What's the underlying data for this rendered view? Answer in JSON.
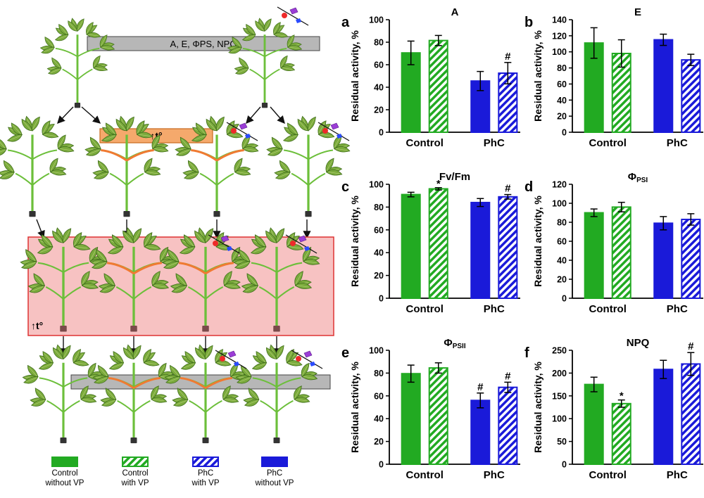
{
  "diagram": {
    "measure_label": "A, E, ΦPS, NPQ",
    "heat_label": "↑t°",
    "legend": [
      {
        "line1": "Control",
        "line2": "without VP",
        "fill": "solid",
        "color": "#22aa22"
      },
      {
        "line1": "Control",
        "line2": "with VP",
        "fill": "hatch",
        "color": "#22aa22"
      },
      {
        "line1": "PhC",
        "line2": "with VP",
        "fill": "hatch",
        "color": "#1a1ad9"
      },
      {
        "line1": "PhC",
        "line2": "without VP",
        "fill": "solid",
        "color": "#1a1ad9"
      }
    ]
  },
  "colors": {
    "control": "#22aa22",
    "phc": "#1a1ad9",
    "heat_box": "#f7c2c2",
    "heat_border": "#d33",
    "burn_bar": "#f5a96c",
    "stem": "#6cbf3a",
    "leaf": "#7aaa3c",
    "burn": "#f07a32"
  },
  "chart_data": [
    {
      "letter": "a",
      "title": "A",
      "title_sub": "",
      "type": "bar",
      "ylabel": "Residual activity, %",
      "ylim": [
        0,
        100
      ],
      "yticks": [
        0,
        20,
        40,
        60,
        80,
        100
      ],
      "categories": [
        "Control",
        "PhC"
      ],
      "series": [
        {
          "name": "Control without VP",
          "values": [
            70.5,
            null
          ],
          "err": [
            10.5,
            null
          ]
        },
        {
          "name": "Control with VP",
          "values": [
            81.5,
            null
          ],
          "err": [
            4.5,
            null
          ]
        },
        {
          "name": "PhC without VP",
          "values": [
            null,
            45.5
          ],
          "err": [
            null,
            8.5
          ]
        },
        {
          "name": "PhC with VP",
          "values": [
            null,
            52.5
          ],
          "err": [
            null,
            9.5
          ]
        }
      ],
      "marks": [
        "",
        "",
        "",
        "#"
      ]
    },
    {
      "letter": "b",
      "title": "E",
      "title_sub": "",
      "type": "bar",
      "ylabel": "Residual activity, %",
      "ylim": [
        0,
        140
      ],
      "yticks": [
        0,
        20,
        40,
        60,
        80,
        100,
        120,
        140
      ],
      "categories": [
        "Control",
        "PhC"
      ],
      "series": [
        {
          "name": "Control without VP",
          "values": [
            111,
            null
          ],
          "err": [
            19,
            null
          ]
        },
        {
          "name": "Control with VP",
          "values": [
            98,
            null
          ],
          "err": [
            17,
            null
          ]
        },
        {
          "name": "PhC without VP",
          "values": [
            null,
            115
          ],
          "err": [
            null,
            7
          ]
        },
        {
          "name": "PhC with VP",
          "values": [
            null,
            90
          ],
          "err": [
            null,
            7
          ]
        }
      ],
      "marks": [
        "",
        "",
        "",
        ""
      ]
    },
    {
      "letter": "c",
      "title": "Fv/Fm",
      "title_sub": "",
      "type": "bar",
      "ylabel": "Residual activity, %",
      "ylim": [
        0,
        100
      ],
      "yticks": [
        0,
        20,
        40,
        60,
        80,
        100
      ],
      "categories": [
        "Control",
        "PhC"
      ],
      "series": [
        {
          "name": "Control without VP",
          "values": [
            91,
            null
          ],
          "err": [
            2,
            null
          ]
        },
        {
          "name": "Control with VP",
          "values": [
            96,
            null
          ],
          "err": [
            1,
            null
          ]
        },
        {
          "name": "PhC without VP",
          "values": [
            null,
            84
          ],
          "err": [
            null,
            3.5
          ]
        },
        {
          "name": "PhC with VP",
          "values": [
            null,
            89
          ],
          "err": [
            null,
            2
          ]
        }
      ],
      "marks": [
        "",
        "*",
        "",
        "#"
      ]
    },
    {
      "letter": "d",
      "title": "Φ",
      "title_sub": "PSI",
      "type": "bar",
      "ylabel": "Residual activity, %",
      "ylim": [
        0,
        120
      ],
      "yticks": [
        0,
        20,
        40,
        60,
        80,
        100,
        120
      ],
      "categories": [
        "Control",
        "PhC"
      ],
      "series": [
        {
          "name": "Control without VP",
          "values": [
            90,
            null
          ],
          "err": [
            4,
            null
          ]
        },
        {
          "name": "Control with VP",
          "values": [
            96,
            null
          ],
          "err": [
            5,
            null
          ]
        },
        {
          "name": "PhC without VP",
          "values": [
            null,
            79
          ],
          "err": [
            null,
            7
          ]
        },
        {
          "name": "PhC with VP",
          "values": [
            null,
            83
          ],
          "err": [
            null,
            6
          ]
        }
      ],
      "marks": [
        "",
        "",
        "",
        ""
      ]
    },
    {
      "letter": "e",
      "title": "Φ",
      "title_sub": "PSII",
      "type": "bar",
      "ylabel": "Residual activity, %",
      "ylim": [
        0,
        100
      ],
      "yticks": [
        0,
        20,
        40,
        60,
        80,
        100
      ],
      "categories": [
        "Control",
        "PhC"
      ],
      "series": [
        {
          "name": "Control without VP",
          "values": [
            79.5,
            null
          ],
          "err": [
            7.5,
            null
          ]
        },
        {
          "name": "Control with VP",
          "values": [
            84.5,
            null
          ],
          "err": [
            4.5,
            null
          ]
        },
        {
          "name": "PhC without VP",
          "values": [
            null,
            56
          ],
          "err": [
            null,
            6.5
          ]
        },
        {
          "name": "PhC with VP",
          "values": [
            null,
            67.5
          ],
          "err": [
            null,
            4.5
          ]
        }
      ],
      "marks": [
        "",
        "",
        "#",
        "#"
      ]
    },
    {
      "letter": "f",
      "title": "NPQ",
      "title_sub": "",
      "type": "bar",
      "ylabel": "Residual activity, %",
      "ylim": [
        0,
        250
      ],
      "yticks": [
        0,
        50,
        100,
        150,
        200,
        250
      ],
      "categories": [
        "Control",
        "PhC"
      ],
      "series": [
        {
          "name": "Control without VP",
          "values": [
            175,
            null
          ],
          "err": [
            16,
            null
          ]
        },
        {
          "name": "Control with VP",
          "values": [
            133,
            null
          ],
          "err": [
            8,
            null
          ]
        },
        {
          "name": "PhC without VP",
          "values": [
            null,
            208
          ],
          "err": [
            null,
            20
          ]
        },
        {
          "name": "PhC with VP",
          "values": [
            null,
            220
          ],
          "err": [
            null,
            25
          ]
        }
      ],
      "marks": [
        "",
        "*",
        "",
        "#"
      ]
    }
  ]
}
